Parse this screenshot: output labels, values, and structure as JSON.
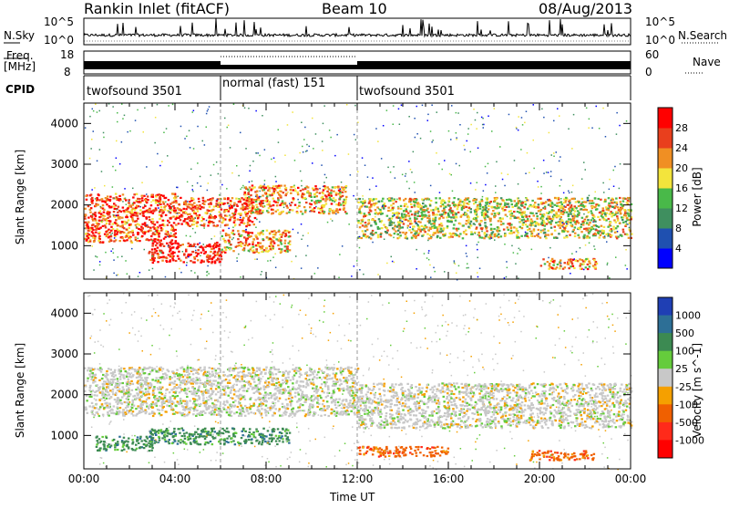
{
  "header": {
    "station": "Rankin Inlet (fitACF)",
    "beam": "Beam 10",
    "date": "08/Aug/2013"
  },
  "top_strip": {
    "nsky_label": "N.Sky",
    "nsearch_label": "N.Search",
    "noise_ticks_left": [
      "10^5",
      "10^0"
    ],
    "noise_ticks_right": [
      "10^5",
      "10^0"
    ],
    "freq_label_line1": "Freq.",
    "freq_label_line2": "[MHz]",
    "freq_ticks": [
      "18",
      "8"
    ],
    "nave_label": "Nave",
    "nave_ticks": [
      "60",
      "0"
    ],
    "cpid_label": "CPID",
    "cpid_segments": [
      {
        "name": "twofsound 3501",
        "start_hour": 0,
        "end_hour": 6
      },
      {
        "name": "normal (fast) 151",
        "start_hour": 6,
        "end_hour": 12
      },
      {
        "name": "twofsound 3501",
        "start_hour": 12,
        "end_hour": 24
      }
    ]
  },
  "chart_data": [
    {
      "type": "heatmap",
      "title": "",
      "quantity": "Power",
      "xlabel": "",
      "ylabel": "Slant Range [km]",
      "xlim": [
        0,
        24
      ],
      "ylim": [
        180,
        4500
      ],
      "yticks": [
        1000,
        2000,
        3000,
        4000
      ],
      "colorbar_label": "Power [dB]",
      "colorbar_ticks": [
        4,
        8,
        12,
        16,
        20,
        24,
        28
      ],
      "colorbar_colors": [
        "#0000ff",
        "#1f50b0",
        "#3f8f5f",
        "#49b949",
        "#f3e43c",
        "#f08f23",
        "#e93f1d",
        "#ff0000"
      ],
      "echo_regions": [
        {
          "hours": [
            0.0,
            4.0
          ],
          "range_km": [
            1100,
            2300
          ],
          "power_db": 22
        },
        {
          "hours": [
            2.8,
            6.0
          ],
          "range_km": [
            600,
            1100
          ],
          "power_db": 26
        },
        {
          "hours": [
            4.0,
            7.5
          ],
          "range_km": [
            1500,
            2200
          ],
          "power_db": 24
        },
        {
          "hours": [
            6.0,
            9.0
          ],
          "range_km": [
            850,
            1400
          ],
          "power_db": 20
        },
        {
          "hours": [
            7.0,
            11.5
          ],
          "range_km": [
            1800,
            2500
          ],
          "power_db": 18
        },
        {
          "hours": [
            12.0,
            24.0
          ],
          "range_km": [
            1200,
            2200
          ],
          "power_db": 14
        },
        {
          "hours": [
            20.0,
            22.5
          ],
          "range_km": [
            450,
            700
          ],
          "power_db": 20
        }
      ]
    },
    {
      "type": "heatmap",
      "title": "",
      "quantity": "Velocity",
      "xlabel": "Time UT",
      "ylabel": "Slant Range [km]",
      "xlim": [
        0,
        24
      ],
      "ylim": [
        180,
        4500
      ],
      "xticks": [
        "00:00",
        "04:00",
        "08:00",
        "12:00",
        "16:00",
        "20:00",
        "00:00"
      ],
      "yticks": [
        1000,
        2000,
        3000,
        4000
      ],
      "colorbar_label": "Velocity [m s^-1]",
      "colorbar_ticks": [
        "1000",
        "500",
        "100",
        "25",
        "-25",
        "-100",
        "-500",
        "-1000"
      ],
      "colorbar_colors": [
        "#1f3fb4",
        "#2d6f96",
        "#3c8a52",
        "#65cc3c",
        "#c8c8c8",
        "#f5a000",
        "#f06000",
        "#ff2a1a",
        "#ff0000"
      ],
      "echo_regions": [
        {
          "hours": [
            0.0,
            12.0
          ],
          "range_km": [
            1500,
            2700
          ],
          "velocity": 0
        },
        {
          "hours": [
            0.5,
            3.0
          ],
          "range_km": [
            650,
            1000
          ],
          "velocity": 100
        },
        {
          "hours": [
            2.8,
            9.0
          ],
          "range_km": [
            800,
            1200
          ],
          "velocity": 300
        },
        {
          "hours": [
            12.0,
            24.0
          ],
          "range_km": [
            1200,
            2300
          ],
          "velocity": 0
        },
        {
          "hours": [
            12.0,
            16.0
          ],
          "range_km": [
            500,
            750
          ],
          "velocity": -200
        },
        {
          "hours": [
            19.5,
            22.5
          ],
          "range_km": [
            400,
            650
          ],
          "velocity": -200
        }
      ]
    }
  ]
}
